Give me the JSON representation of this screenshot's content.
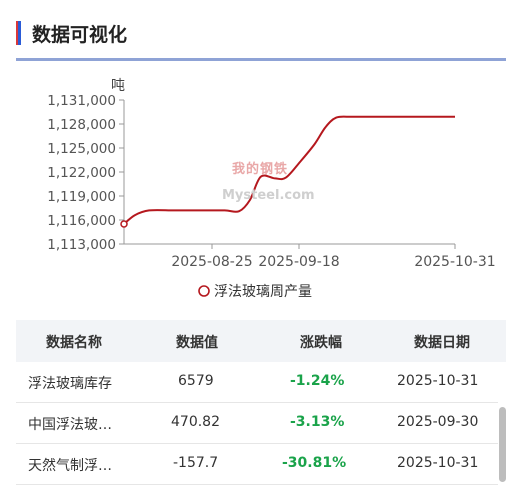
{
  "page": {
    "title": "数据可视化"
  },
  "colors": {
    "accent_red": "#d9383a",
    "accent_blue": "#2a5bd7",
    "line": "#b5181e",
    "positive_change": "#1aa34a"
  },
  "watermark": {
    "top": "我的钢铁",
    "bottom": "Mysteel.com"
  },
  "chart_data": {
    "type": "line",
    "unit_label": "吨",
    "y_ticks": [
      1113000,
      1116000,
      1119000,
      1122000,
      1125000,
      1128000,
      1131000
    ],
    "y_tick_labels": [
      "1,113,000",
      "1,116,000",
      "1,119,000",
      "1,122,000",
      "1,125,000",
      "1,128,000",
      "1,131,000"
    ],
    "ylim": [
      1113000,
      1131000
    ],
    "x_tick_labels": [
      "2025-08-25",
      "2025-09-18",
      "2025-10-31"
    ],
    "series": [
      {
        "name": "浮法玻璃周产量",
        "x": [
          "2025-07-31",
          "2025-08-03",
          "2025-08-07",
          "2025-08-14",
          "2025-08-21",
          "2025-08-28",
          "2025-09-01",
          "2025-09-04",
          "2025-09-07",
          "2025-09-11",
          "2025-09-14",
          "2025-09-18",
          "2025-09-22",
          "2025-09-25",
          "2025-09-28",
          "2025-10-02",
          "2025-10-05",
          "2025-10-09",
          "2025-10-16",
          "2025-10-23",
          "2025-10-31"
        ],
        "values": [
          1115500,
          1116600,
          1117200,
          1117200,
          1117200,
          1117200,
          1117100,
          1118500,
          1121400,
          1121200,
          1121300,
          1123300,
          1125500,
          1127600,
          1128800,
          1128900,
          1128900,
          1128900,
          1128900,
          1128900,
          1128900
        ]
      }
    ],
    "legend_position": "bottom",
    "grid": false
  },
  "table": {
    "headers": [
      "数据名称",
      "数据值",
      "涨跌幅",
      "数据日期"
    ],
    "rows": [
      {
        "name": "浮法玻璃库存",
        "value": "6579",
        "change": "-1.24%",
        "date": "2025-10-31"
      },
      {
        "name": "中国浮法玻…",
        "value": "470.82",
        "change": "-3.13%",
        "date": "2025-09-30"
      },
      {
        "name": "天然气制浮…",
        "value": "-157.7",
        "change": "-30.81%",
        "date": "2025-10-31"
      }
    ]
  }
}
